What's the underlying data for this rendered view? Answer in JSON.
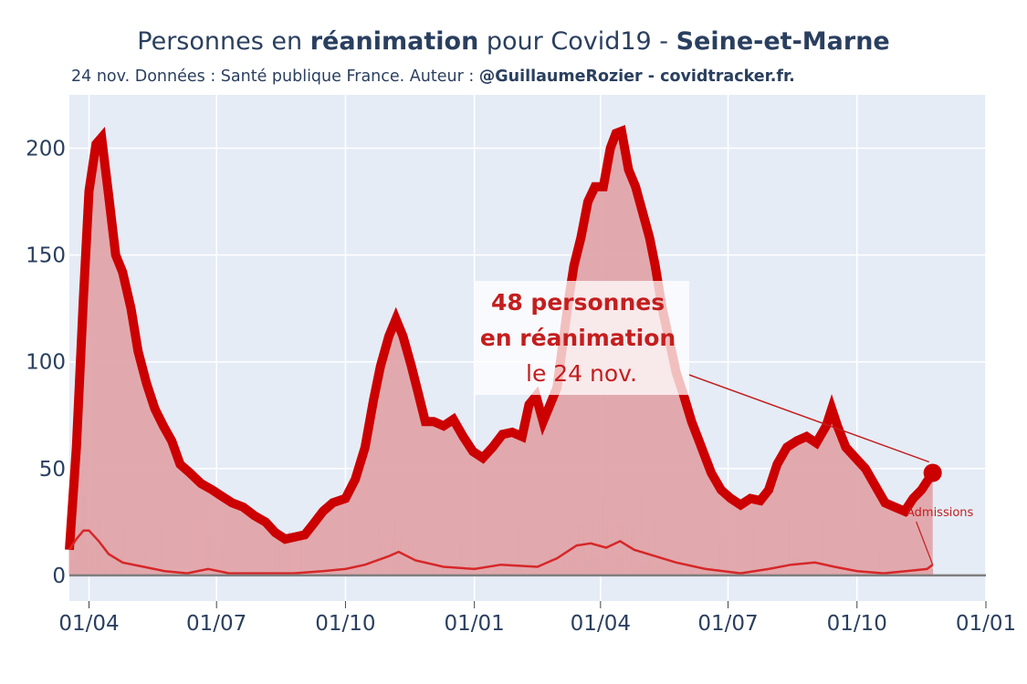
{
  "title": {
    "prefix": "Personnes en ",
    "bold_1": "réanimation",
    "middle": " pour Covid19 - ",
    "bold_2": "Seine-et-Marne"
  },
  "subtitle": {
    "text": "24 nov. Données : Santé publique France. Auteur : ",
    "bold": "@GuillaumeRozier - covidtracker.fr."
  },
  "annotation": {
    "line1": "48 personnes",
    "line2": "en réanimation",
    "line3": "le 24 nov."
  },
  "admissions_label": "Admissions",
  "colors": {
    "plot_bg": "#e5ecf6",
    "line": "#cc0000",
    "fill": "#e0a5aa",
    "text": "#2a3f5f"
  },
  "chart_data": {
    "type": "area",
    "x_ticks": [
      "01/04",
      "01/07",
      "01/10",
      "01/01",
      "01/04",
      "01/07",
      "01/10",
      "01/01"
    ],
    "x_tick_dates": [
      "2020-04-01",
      "2020-07-01",
      "2020-10-01",
      "2021-01-01",
      "2021-04-01",
      "2021-07-01",
      "2021-10-01",
      "2022-01-01"
    ],
    "x_range": [
      "2020-03-18",
      "2022-01-01"
    ],
    "y_ticks": [
      0,
      50,
      100,
      150,
      200
    ],
    "ylim": [
      -12,
      225
    ],
    "grid": true,
    "series": [
      {
        "name": "",
        "style": "thick-line-with-fill",
        "points": [
          [
            "2020-03-18",
            12
          ],
          [
            "2020-03-23",
            60
          ],
          [
            "2020-03-28",
            130
          ],
          [
            "2020-04-01",
            180
          ],
          [
            "2020-04-06",
            202
          ],
          [
            "2020-04-10",
            205
          ],
          [
            "2020-04-15",
            178
          ],
          [
            "2020-04-20",
            150
          ],
          [
            "2020-04-25",
            142
          ],
          [
            "2020-05-01",
            125
          ],
          [
            "2020-05-06",
            105
          ],
          [
            "2020-05-12",
            90
          ],
          [
            "2020-05-18",
            78
          ],
          [
            "2020-05-24",
            70
          ],
          [
            "2020-05-30",
            63
          ],
          [
            "2020-06-05",
            52
          ],
          [
            "2020-06-12",
            48
          ],
          [
            "2020-06-20",
            43
          ],
          [
            "2020-06-28",
            40
          ],
          [
            "2020-07-05",
            37
          ],
          [
            "2020-07-12",
            34
          ],
          [
            "2020-07-20",
            32
          ],
          [
            "2020-07-28",
            28
          ],
          [
            "2020-08-05",
            25
          ],
          [
            "2020-08-12",
            20
          ],
          [
            "2020-08-19",
            17
          ],
          [
            "2020-08-26",
            18
          ],
          [
            "2020-09-02",
            19
          ],
          [
            "2020-09-08",
            24
          ],
          [
            "2020-09-15",
            30
          ],
          [
            "2020-09-22",
            34
          ],
          [
            "2020-10-01",
            36
          ],
          [
            "2020-10-08",
            45
          ],
          [
            "2020-10-15",
            60
          ],
          [
            "2020-10-21",
            82
          ],
          [
            "2020-10-26",
            98
          ],
          [
            "2020-11-01",
            112
          ],
          [
            "2020-11-06",
            120
          ],
          [
            "2020-11-11",
            112
          ],
          [
            "2020-11-17",
            98
          ],
          [
            "2020-11-22",
            85
          ],
          [
            "2020-11-27",
            72
          ],
          [
            "2020-12-03",
            72
          ],
          [
            "2020-12-10",
            70
          ],
          [
            "2020-12-17",
            73
          ],
          [
            "2020-12-24",
            65
          ],
          [
            "2020-12-31",
            58
          ],
          [
            "2021-01-07",
            55
          ],
          [
            "2021-01-14",
            60
          ],
          [
            "2021-01-21",
            66
          ],
          [
            "2021-01-28",
            67
          ],
          [
            "2021-02-04",
            65
          ],
          [
            "2021-02-09",
            80
          ],
          [
            "2021-02-14",
            84
          ],
          [
            "2021-02-19",
            72
          ],
          [
            "2021-02-24",
            80
          ],
          [
            "2021-03-01",
            88
          ],
          [
            "2021-03-05",
            108
          ],
          [
            "2021-03-09",
            128
          ],
          [
            "2021-03-13",
            145
          ],
          [
            "2021-03-18",
            158
          ],
          [
            "2021-03-23",
            175
          ],
          [
            "2021-03-28",
            182
          ],
          [
            "2021-04-03",
            182
          ],
          [
            "2021-04-08",
            200
          ],
          [
            "2021-04-12",
            207
          ],
          [
            "2021-04-16",
            208
          ],
          [
            "2021-04-21",
            190
          ],
          [
            "2021-04-26",
            182
          ],
          [
            "2021-05-01",
            170
          ],
          [
            "2021-05-06",
            158
          ],
          [
            "2021-05-10",
            145
          ],
          [
            "2021-05-15",
            125
          ],
          [
            "2021-05-20",
            110
          ],
          [
            "2021-05-25",
            95
          ],
          [
            "2021-05-30",
            85
          ],
          [
            "2021-06-05",
            72
          ],
          [
            "2021-06-12",
            60
          ],
          [
            "2021-06-19",
            48
          ],
          [
            "2021-06-26",
            40
          ],
          [
            "2021-07-03",
            36
          ],
          [
            "2021-07-10",
            33
          ],
          [
            "2021-07-17",
            36
          ],
          [
            "2021-07-24",
            35
          ],
          [
            "2021-07-30",
            40
          ],
          [
            "2021-08-05",
            52
          ],
          [
            "2021-08-12",
            60
          ],
          [
            "2021-08-19",
            63
          ],
          [
            "2021-08-26",
            65
          ],
          [
            "2021-09-02",
            62
          ],
          [
            "2021-09-09",
            70
          ],
          [
            "2021-09-13",
            78
          ],
          [
            "2021-09-17",
            70
          ],
          [
            "2021-09-23",
            60
          ],
          [
            "2021-09-30",
            55
          ],
          [
            "2021-10-07",
            50
          ],
          [
            "2021-10-14",
            42
          ],
          [
            "2021-10-21",
            34
          ],
          [
            "2021-10-28",
            32
          ],
          [
            "2021-11-04",
            30
          ],
          [
            "2021-11-10",
            36
          ],
          [
            "2021-11-16",
            40
          ],
          [
            "2021-11-20",
            44
          ],
          [
            "2021-11-24",
            48
          ]
        ]
      },
      {
        "name": "Admissions",
        "style": "thin-line",
        "points": [
          [
            "2020-03-18",
            12
          ],
          [
            "2020-03-23",
            17
          ],
          [
            "2020-03-28",
            21
          ],
          [
            "2020-04-01",
            21
          ],
          [
            "2020-04-08",
            16
          ],
          [
            "2020-04-15",
            10
          ],
          [
            "2020-04-25",
            6
          ],
          [
            "2020-05-10",
            4
          ],
          [
            "2020-05-25",
            2
          ],
          [
            "2020-06-10",
            1
          ],
          [
            "2020-06-25",
            3
          ],
          [
            "2020-07-10",
            1
          ],
          [
            "2020-08-01",
            1
          ],
          [
            "2020-08-25",
            1
          ],
          [
            "2020-09-15",
            2
          ],
          [
            "2020-10-01",
            3
          ],
          [
            "2020-10-15",
            5
          ],
          [
            "2020-11-01",
            9
          ],
          [
            "2020-11-08",
            11
          ],
          [
            "2020-11-20",
            7
          ],
          [
            "2020-12-10",
            4
          ],
          [
            "2021-01-01",
            3
          ],
          [
            "2021-01-20",
            5
          ],
          [
            "2021-02-15",
            4
          ],
          [
            "2021-03-01",
            8
          ],
          [
            "2021-03-15",
            14
          ],
          [
            "2021-03-25",
            15
          ],
          [
            "2021-04-05",
            13
          ],
          [
            "2021-04-15",
            16
          ],
          [
            "2021-04-25",
            12
          ],
          [
            "2021-05-10",
            9
          ],
          [
            "2021-05-25",
            6
          ],
          [
            "2021-06-15",
            3
          ],
          [
            "2021-07-10",
            1
          ],
          [
            "2021-07-30",
            3
          ],
          [
            "2021-08-15",
            5
          ],
          [
            "2021-09-01",
            6
          ],
          [
            "2021-09-15",
            4
          ],
          [
            "2021-10-01",
            2
          ],
          [
            "2021-10-20",
            1
          ],
          [
            "2021-11-05",
            2
          ],
          [
            "2021-11-20",
            3
          ],
          [
            "2021-11-24",
            5
          ]
        ]
      }
    ],
    "highlight": {
      "date": "2021-11-24",
      "value": 48
    }
  }
}
